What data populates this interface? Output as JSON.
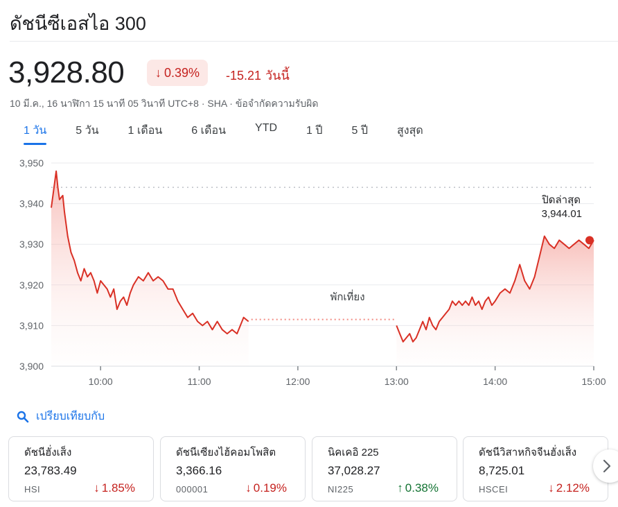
{
  "header": {
    "title": "ดัชนีซีเอสไอ 300"
  },
  "quote": {
    "price": "3,928.80",
    "change_pct": "0.39%",
    "change_abs": "-15.21",
    "change_label": "วันนี้",
    "direction_icon": "arrow-down-icon"
  },
  "meta": {
    "text": "10 มี.ค., 16 นาฬิกา 15 นาที 05 วินาที UTC+8 · SHA · ข้อจำกัดความรับผิด"
  },
  "tabs": [
    {
      "label": "1 วัน",
      "active": true
    },
    {
      "label": "5 วัน"
    },
    {
      "label": "1 เดือน"
    },
    {
      "label": "6 เดือน"
    },
    {
      "label": "YTD"
    },
    {
      "label": "1 ปี"
    },
    {
      "label": "5 ปี"
    },
    {
      "label": "สูงสุด"
    }
  ],
  "chart_data": {
    "type": "line",
    "title": "",
    "xlabel": "",
    "ylabel": "",
    "y_ticks": [
      "3,950",
      "3,940",
      "3,930",
      "3,920",
      "3,910",
      "3,900"
    ],
    "ylim": [
      3900,
      3952
    ],
    "x_ticks": [
      "10:00",
      "11:00",
      "12:00",
      "13:00",
      "14:00",
      "15:00"
    ],
    "x_range": [
      "09:30",
      "15:00"
    ],
    "gridlines": "horizontal",
    "previous_close": {
      "label": "ปิดล่าสุด",
      "value": "3,944.01",
      "numeric": 3944.01
    },
    "lunch_break": {
      "label": "พักเที่ยง",
      "from": "11:30",
      "to": "13:00",
      "level": 3911.5
    },
    "line_color": "#d93025",
    "series": [
      {
        "morning": {
          "x": [
            "09:30",
            "09:31",
            "09:33",
            "09:34",
            "09:35",
            "09:37",
            "09:38",
            "09:40",
            "09:42",
            "09:44",
            "09:46",
            "09:48",
            "09:50",
            "09:52",
            "09:54",
            "09:56",
            "09:58",
            "10:00",
            "10:02",
            "10:04",
            "10:06",
            "10:08",
            "10:10",
            "10:12",
            "10:14",
            "10:16",
            "10:18",
            "10:20",
            "10:23",
            "10:26",
            "10:29",
            "10:32",
            "10:35",
            "10:38",
            "10:41",
            "10:44",
            "10:47",
            "10:50",
            "10:53",
            "10:56",
            "10:59",
            "11:02",
            "11:05",
            "11:08",
            "11:11",
            "11:14",
            "11:17",
            "11:20",
            "11:23",
            "11:25",
            "11:27",
            "11:30"
          ],
          "y": [
            3939,
            3942,
            3948,
            3944,
            3941,
            3942,
            3938,
            3932,
            3928,
            3926,
            3923,
            3921,
            3924,
            3922,
            3923,
            3921,
            3918,
            3921,
            3920,
            3919,
            3917,
            3919,
            3914,
            3916,
            3917,
            3915,
            3918,
            3920,
            3922,
            3921,
            3923,
            3921,
            3922,
            3921,
            3919,
            3919,
            3916,
            3914,
            3912,
            3913,
            3911,
            3910,
            3911,
            3909,
            3911,
            3909,
            3908,
            3909,
            3908,
            3910,
            3912,
            3911
          ],
          "last_point": {
            "time": "11:30",
            "value": 3911
          }
        },
        "afternoon": {
          "x": [
            "13:00",
            "13:02",
            "13:04",
            "13:06",
            "13:08",
            "13:10",
            "13:12",
            "13:14",
            "13:16",
            "13:18",
            "13:20",
            "13:22",
            "13:24",
            "13:26",
            "13:28",
            "13:30",
            "13:32",
            "13:34",
            "13:36",
            "13:38",
            "13:40",
            "13:42",
            "13:44",
            "13:46",
            "13:48",
            "13:50",
            "13:52",
            "13:54",
            "13:56",
            "13:58",
            "14:00",
            "14:03",
            "14:06",
            "14:09",
            "14:12",
            "14:15",
            "14:18",
            "14:21",
            "14:24",
            "14:27",
            "14:30",
            "14:33",
            "14:36",
            "14:39",
            "14:42",
            "14:45",
            "14:48",
            "14:51",
            "14:54",
            "14:57",
            "15:00"
          ],
          "y": [
            3910,
            3908,
            3906,
            3907,
            3908,
            3906,
            3907,
            3909,
            3911,
            3909,
            3912,
            3910,
            3909,
            3911,
            3912,
            3913,
            3914,
            3916,
            3915,
            3916,
            3915,
            3916,
            3915,
            3917,
            3915,
            3916,
            3914,
            3916,
            3917,
            3915,
            3916,
            3918,
            3919,
            3918,
            3921,
            3925,
            3921,
            3919,
            3922,
            3927,
            3932,
            3930,
            3929,
            3931,
            3930,
            3929,
            3930,
            3931,
            3930,
            3929,
            3931
          ],
          "last_point": {
            "time": "15:00",
            "value": 3931
          }
        }
      }
    ]
  },
  "compare": {
    "label": "เปรียบเทียบกับ",
    "icon": "search-icon"
  },
  "cards": [
    {
      "name": "ดัชนีฮั่งเส็ง",
      "value": "23,783.49",
      "code": "HSI",
      "change": "1.85%",
      "direction": "down"
    },
    {
      "name": "ดัชนีเซียงไฮ้คอมโพสิต",
      "value": "3,366.16",
      "code": "000001",
      "change": "0.19%",
      "direction": "down"
    },
    {
      "name": "นิคเคอิ 225",
      "value": "37,028.27",
      "code": "NI225",
      "change": "0.38%",
      "direction": "up"
    },
    {
      "name": "ดัชนีวิสาหกิจจีนฮั่งเส็ง",
      "value": "8,725.01",
      "code": "HSCEI",
      "change": "2.12%",
      "direction": "down"
    }
  ],
  "colors": {
    "down": "#c5221f",
    "up": "#137333",
    "accent": "#1a73e8",
    "badge_bg": "#fce8e6"
  }
}
